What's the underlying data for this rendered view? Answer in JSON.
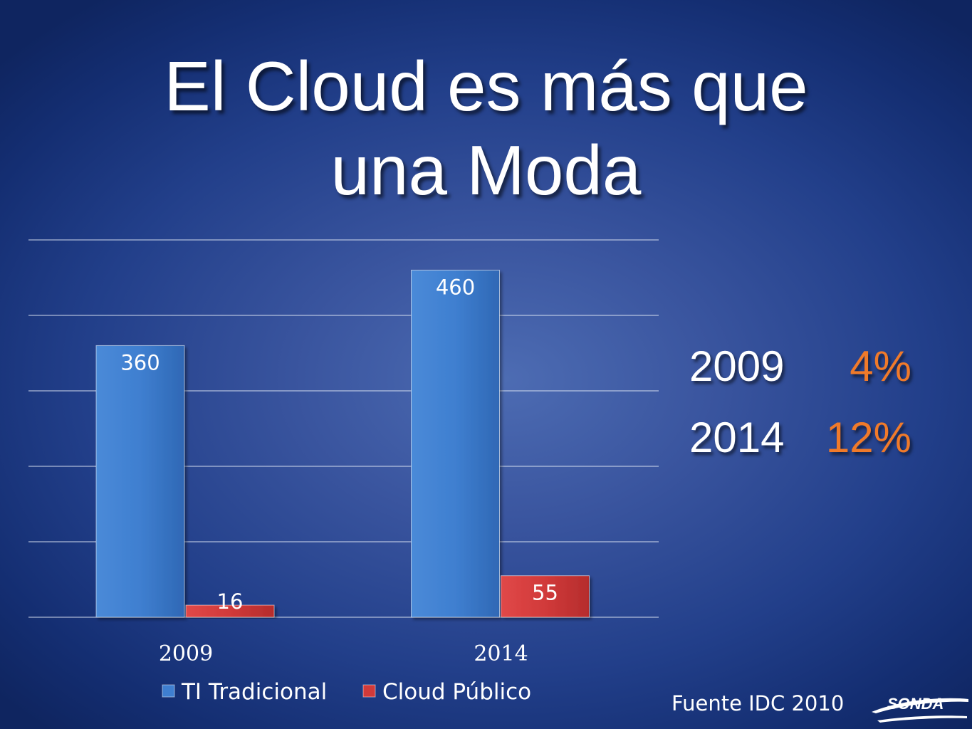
{
  "slide": {
    "title_line1": "El Cloud es más que",
    "title_line2": "una Moda",
    "source": "Fuente IDC 2010",
    "logo_text": "SONDA"
  },
  "cloud_share": [
    {
      "year": "2009",
      "percent": "4%"
    },
    {
      "year": "2014",
      "percent": "12%"
    }
  ],
  "colors": {
    "ti_tradicional": "#3f7fd0",
    "cloud_publico": "#d13a3a",
    "percent_highlight": "#f07a2a"
  },
  "chart_data": {
    "type": "bar",
    "categories": [
      "2009",
      "2014"
    ],
    "series": [
      {
        "name": "TI Tradicional",
        "values": [
          360,
          460
        ]
      },
      {
        "name": "Cloud Público",
        "values": [
          16,
          55
        ]
      }
    ],
    "ylim": [
      0,
      500
    ],
    "grid": true,
    "legend": "bottom",
    "data_labels": true
  }
}
